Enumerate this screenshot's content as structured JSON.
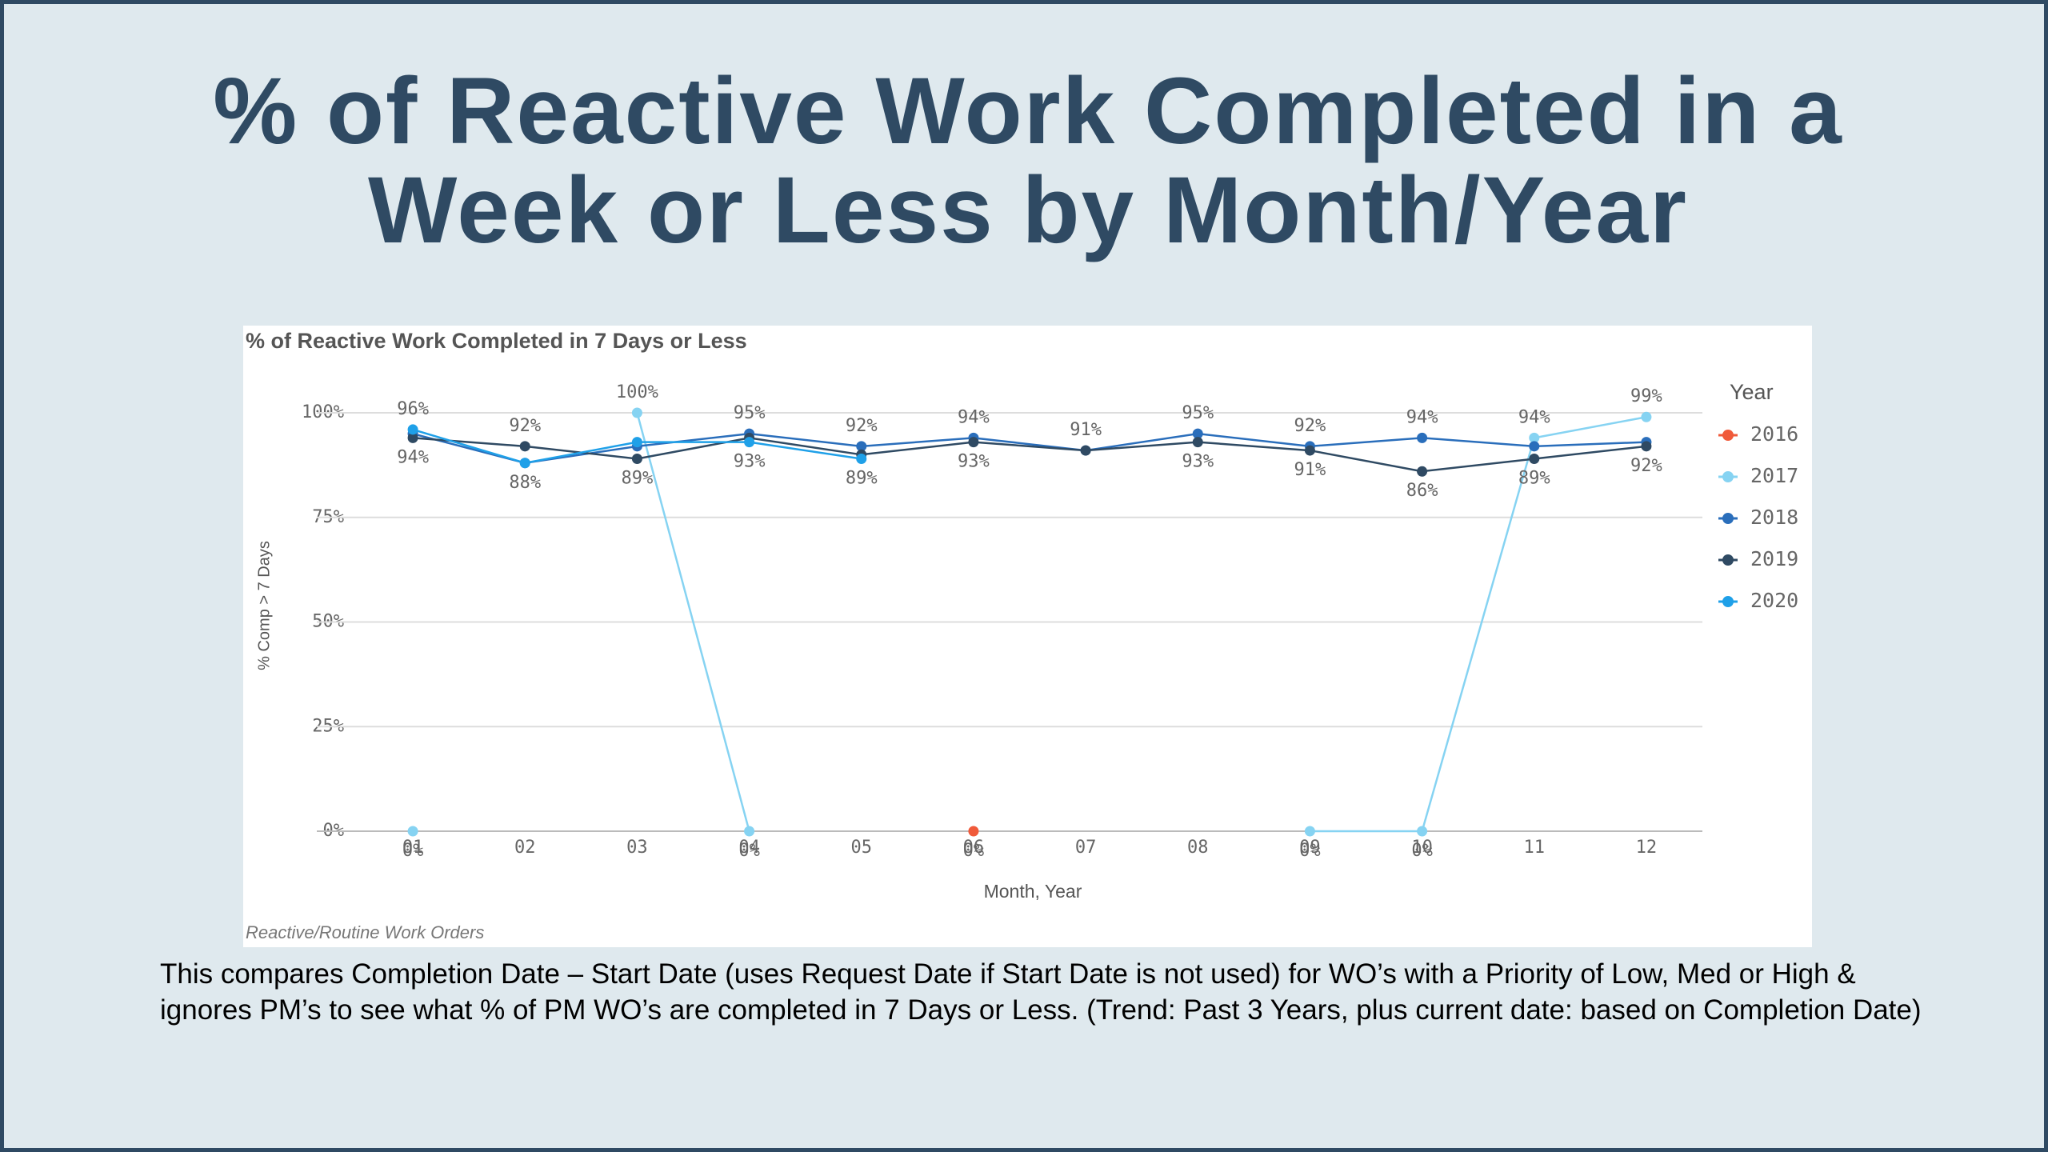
{
  "slide": {
    "title": "% of Reactive Work Completed in a Week or Less by Month/Year",
    "caption": "This compares Completion Date – Start Date (uses Request Date if Start Date is not used)  for WO’s with a Priority of Low, Med or High & ignores PM’s to see what % of PM WO’s are completed in 7 Days or Less. (Trend: Past 3 Years, plus current date: based on Completion Date)"
  },
  "chart_data": {
    "type": "line",
    "title": "% of Reactive Work Completed in 7 Days or Less",
    "footnote": "Reactive/Routine Work Orders",
    "x_label": "Month, Year",
    "y_label": "% Comp > 7 Days",
    "legend_title": "Year",
    "legend_position": "right",
    "grid": true,
    "categories": [
      "01",
      "02",
      "03",
      "04",
      "05",
      "06",
      "07",
      "08",
      "09",
      "10",
      "11",
      "12"
    ],
    "ylim": [
      0,
      100
    ],
    "yticks": [
      {
        "value": 0,
        "label": "0%"
      },
      {
        "value": 25,
        "label": "25%"
      },
      {
        "value": 50,
        "label": "50%"
      },
      {
        "value": 75,
        "label": "75%"
      },
      {
        "value": 100,
        "label": "100%"
      }
    ],
    "series": [
      {
        "name": "2016",
        "color": "#f05a3a",
        "values": [
          null,
          null,
          null,
          null,
          null,
          0,
          null,
          null,
          null,
          null,
          null,
          null
        ],
        "value_labels": [
          null,
          null,
          null,
          null,
          null,
          "0%",
          null,
          null,
          null,
          null,
          null,
          null
        ]
      },
      {
        "name": "2017",
        "color": "#86d3f2",
        "values": [
          0,
          null,
          100,
          0,
          null,
          null,
          null,
          null,
          0,
          0,
          94,
          99
        ],
        "value_labels": [
          "0%",
          null,
          "100%",
          "0%",
          null,
          null,
          null,
          null,
          "0%",
          "0%",
          "94%",
          "99%"
        ]
      },
      {
        "name": "2018",
        "color": "#2a6ebb",
        "values": [
          95,
          88,
          92,
          95,
          92,
          94,
          91,
          95,
          92,
          94,
          92,
          93
        ],
        "value_labels": [
          null,
          null,
          null,
          "95%",
          "92%",
          "94%",
          "91%",
          "95%",
          "92%",
          "94%",
          null,
          null
        ]
      },
      {
        "name": "2019",
        "color": "#2f4a63",
        "values": [
          94,
          92,
          89,
          94,
          90,
          93,
          91,
          93,
          91,
          86,
          89,
          92
        ],
        "value_labels": [
          "94%",
          "92%",
          "89%",
          null,
          null,
          "93%",
          null,
          "93%",
          "91%",
          "86%",
          "89%",
          "92%"
        ]
      },
      {
        "name": "2020",
        "color": "#1fa0e8",
        "values": [
          96,
          88,
          93,
          93,
          89,
          null,
          null,
          null,
          null,
          null,
          null,
          null
        ],
        "value_labels": [
          "96%",
          "88%",
          null,
          "93%",
          "89%",
          null,
          null,
          null,
          null,
          null,
          null,
          null
        ]
      }
    ]
  }
}
